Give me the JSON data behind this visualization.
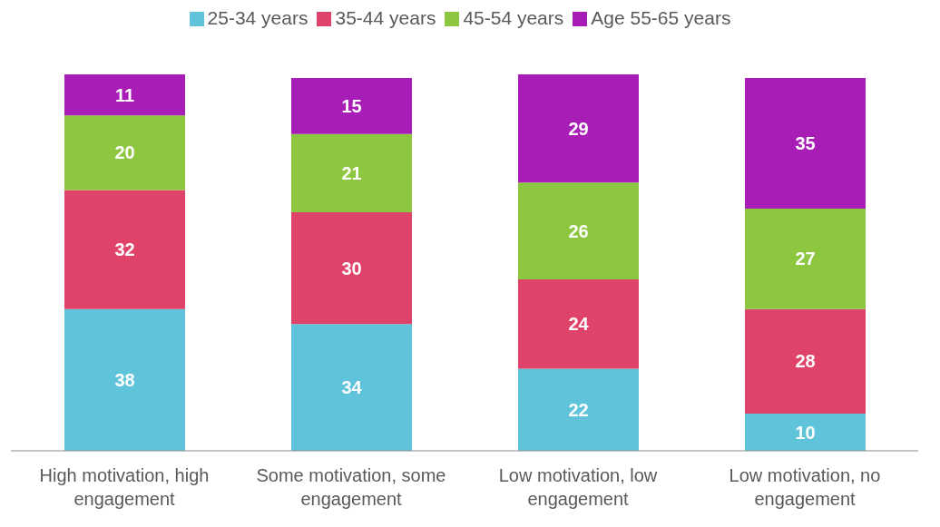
{
  "chart_data": {
    "type": "bar",
    "stacked": true,
    "data_labels": true,
    "legend": "top",
    "grid": false,
    "categories": [
      "High motivation, high engagement",
      "Some motivation, some engagement",
      "Low motivation, low engagement",
      "Low motivation, no engagement"
    ],
    "series": [
      {
        "name": "25-34 years",
        "color": "#5fc4d9",
        "values": [
          38,
          34,
          22,
          10
        ]
      },
      {
        "name": "35-44 years",
        "color": "#e0436a",
        "values": [
          32,
          30,
          24,
          28
        ]
      },
      {
        "name": "45-54 years",
        "color": "#8dc63f",
        "values": [
          20,
          21,
          26,
          27
        ]
      },
      {
        "name": "Age 55-65 years",
        "color": "#a81db5",
        "values": [
          11,
          15,
          29,
          35
        ]
      }
    ]
  }
}
